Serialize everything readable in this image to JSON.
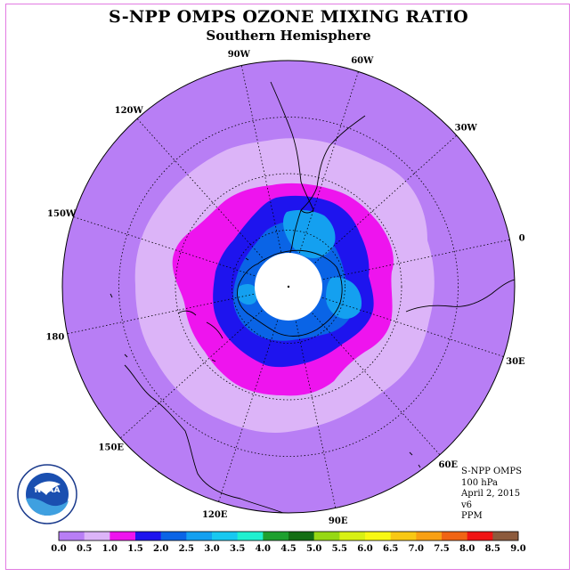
{
  "title": "S-NPP OMPS OZONE MIXING RATIO",
  "subtitle": "Southern Hemisphere",
  "longitude_labels": [
    {
      "text": "90W",
      "lon": -90
    },
    {
      "text": "60W",
      "lon": -60
    },
    {
      "text": "30W",
      "lon": -30
    },
    {
      "text": "0",
      "lon": 0
    },
    {
      "text": "30E",
      "lon": 30
    },
    {
      "text": "60E",
      "lon": 60
    },
    {
      "text": "90E",
      "lon": 90
    },
    {
      "text": "120E",
      "lon": 120
    },
    {
      "text": "150E",
      "lon": 150
    },
    {
      "text": "180",
      "lon": 180
    },
    {
      "text": "150W",
      "lon": -150
    },
    {
      "text": "120W",
      "lon": -120
    }
  ],
  "info": {
    "instrument": "S-NPP OMPS",
    "level": "100 hPa",
    "date": "April 2, 2015",
    "version": "v6",
    "units": "PPM"
  },
  "logo": {
    "text": "NOAA",
    "ring_text": "NATIONAL OCEANIC AND ATMOSPHERIC ADMINISTRATION"
  },
  "colorbar": {
    "ticks": [
      "0.0",
      "0.5",
      "1.0",
      "1.5",
      "2.0",
      "2.5",
      "3.0",
      "3.5",
      "4.0",
      "4.5",
      "5.0",
      "5.5",
      "6.0",
      "6.5",
      "7.0",
      "7.5",
      "8.0",
      "8.5",
      "9.0"
    ],
    "colors": [
      "#b87ef5",
      "#dcb4f8",
      "#ee14ee",
      "#1e14ee",
      "#0a64e6",
      "#14a0f0",
      "#18c8f0",
      "#20f0d0",
      "#1ea02e",
      "#146e14",
      "#96d814",
      "#d8f014",
      "#f8f814",
      "#f8c814",
      "#f8a014",
      "#f06414",
      "#f01414",
      "#8c5a3c"
    ]
  },
  "ozone_contours": [
    {
      "level": "0.0-0.5",
      "color": "#b87ef5"
    },
    {
      "level": "0.5-1.0",
      "color": "#dcb4f8"
    },
    {
      "level": "1.0-1.5",
      "color": "#ee14ee"
    },
    {
      "level": "1.5-2.0",
      "color": "#1e14ee"
    },
    {
      "level": "2.0-2.5",
      "color": "#0a64e6"
    },
    {
      "level": "2.5-3.0",
      "color": "#14a0f0"
    }
  ]
}
